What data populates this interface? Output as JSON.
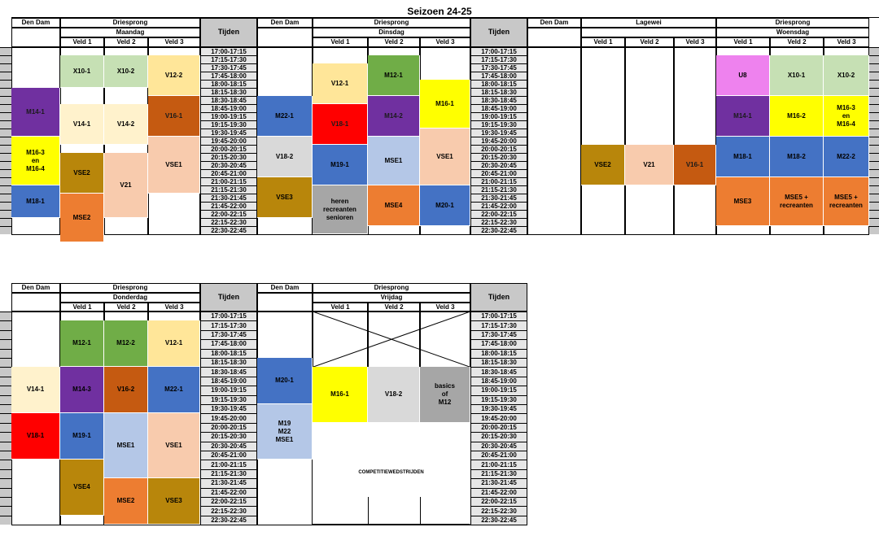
{
  "title": "Seizoen 24-25",
  "times": [
    "17:00-17:15",
    "17:15-17:30",
    "17:30-17:45",
    "17:45-18:00",
    "18:00-18:15",
    "18:15-18:30",
    "18:30-18:45",
    "18:45-19:00",
    "19:00-19:15",
    "19:15-19:30",
    "19:30-19:45",
    "19:45-20:00",
    "20:00-20:15",
    "20:15-20:30",
    "20:30-20:45",
    "20:45-21:00",
    "21:00-21:15",
    "21:15-21:30",
    "21:30-21:45",
    "21:45-22:00",
    "22:00-22:15",
    "22:15-22:30",
    "22:30-22:45"
  ],
  "labels": {
    "den_dam": "Den Dam",
    "driesprong": "Driesprong",
    "lagewei": "Lagewei",
    "tijden": "Tijden",
    "veld1": "Veld 1",
    "veld2": "Veld 2",
    "veld3": "Veld 3",
    "maandag": "Maandag",
    "dinsdag": "Dinsdag",
    "woensdag": "Woensdag",
    "donderdag": "Donderdag",
    "vrijdag": "Vrijdag",
    "competitie": "COMPETITIEWEDSTRIJDEN"
  },
  "colors": {
    "purple": "#7030a0",
    "yellow": "#ffff00",
    "blue": "#4472c4",
    "lightgreen": "#c6e0b4",
    "cream": "#fff2cc",
    "gold": "#b8860b",
    "orange": "#ed7d31",
    "lightorange": "#ffe699",
    "rust": "#c55a11",
    "salmon": "#f8cbad",
    "green": "#70ad47",
    "red": "#ff0000",
    "gray": "#d9d9d9",
    "darkgray": "#a6a6a6",
    "pink": "#ee82ee",
    "lightblue": "#b4c7e7"
  },
  "top_blocks": [
    {
      "label": "M14-1",
      "color": "#7030a0"
    },
    {
      "label": "M16-3\nen\nM16-4",
      "color": "#ffff00"
    },
    {
      "label": "M18-1",
      "color": "#4472c4"
    },
    {
      "label": "X10-1",
      "color": "#c6e0b4"
    },
    {
      "label": "V14-1",
      "color": "#fff2cc"
    },
    {
      "label": "VSE2",
      "color": "#b8860b"
    },
    {
      "label": "MSE2",
      "color": "#ed7d31"
    },
    {
      "label": "X10-2",
      "color": "#c6e0b4"
    },
    {
      "label": "V14-2",
      "color": "#fff2cc"
    },
    {
      "label": "V21",
      "color": "#f8cbad"
    },
    {
      "label": "V12-2",
      "color": "#ffe699"
    },
    {
      "label": "V16-1",
      "color": "#c55a11"
    },
    {
      "label": "VSE1",
      "color": "#f8cbad"
    },
    {
      "label": "M22-1",
      "color": "#4472c4"
    },
    {
      "label": "V18-2",
      "color": "#d9d9d9"
    },
    {
      "label": "VSE3",
      "color": "#b8860b"
    },
    {
      "label": "V12-1",
      "color": "#ffe699"
    },
    {
      "label": "V18-1",
      "color": "#ff0000"
    },
    {
      "label": "M19-1",
      "color": "#4472c4"
    },
    {
      "label": "heren\nrecreanten\nsenioren",
      "color": "#a6a6a6"
    },
    {
      "label": "M12-1",
      "color": "#70ad47"
    },
    {
      "label": "M14-2",
      "color": "#7030a0"
    },
    {
      "label": "MSE1",
      "color": "#b4c7e7"
    },
    {
      "label": "MSE4",
      "color": "#ed7d31"
    },
    {
      "label": "M16-1",
      "color": "#ffff00"
    },
    {
      "label": "VSE1",
      "color": "#f8cbad"
    },
    {
      "label": "M20-1",
      "color": "#4472c4"
    },
    {
      "label": "VSE2",
      "color": "#b8860b"
    },
    {
      "label": "V21",
      "color": "#f8cbad"
    },
    {
      "label": "V16-1",
      "color": "#c55a11"
    },
    {
      "label": "U8",
      "color": "#ee82ee"
    },
    {
      "label": "M14-1",
      "color": "#7030a0"
    },
    {
      "label": "M18-1",
      "color": "#4472c4"
    },
    {
      "label": "MSE3",
      "color": "#ed7d31"
    },
    {
      "label": "X10-1",
      "color": "#c6e0b4"
    },
    {
      "label": "M16-2",
      "color": "#ffff00"
    },
    {
      "label": "M18-2",
      "color": "#4472c4"
    },
    {
      "label": "MSE5 +\nrecreanten",
      "color": "#ed7d31"
    },
    {
      "label": "X10-2",
      "color": "#c6e0b4"
    },
    {
      "label": "M16-3\nen\nM16-4",
      "color": "#ffff00"
    },
    {
      "label": "M22-2",
      "color": "#4472c4"
    },
    {
      "label": "MSE5 +\nrecreanten",
      "color": "#ed7d31"
    }
  ],
  "bottom_blocks": [
    {
      "label": "V14-1",
      "color": "#fff2cc"
    },
    {
      "label": "V18-1",
      "color": "#ff0000"
    },
    {
      "label": "M12-1",
      "color": "#70ad47"
    },
    {
      "label": "M14-3",
      "color": "#7030a0"
    },
    {
      "label": "M19-1",
      "color": "#4472c4"
    },
    {
      "label": "VSE4",
      "color": "#b8860b"
    },
    {
      "label": "M12-2",
      "color": "#70ad47"
    },
    {
      "label": "V16-2",
      "color": "#c55a11"
    },
    {
      "label": "MSE1",
      "color": "#b4c7e7"
    },
    {
      "label": "MSE2",
      "color": "#ed7d31"
    },
    {
      "label": "V12-1",
      "color": "#ffe699"
    },
    {
      "label": "M22-1",
      "color": "#4472c4"
    },
    {
      "label": "VSE1",
      "color": "#f8cbad"
    },
    {
      "label": "VSE3",
      "color": "#b8860b"
    },
    {
      "label": "M20-1",
      "color": "#4472c4"
    },
    {
      "label": "M19\nM22\nMSE1",
      "color": "#b4c7e7"
    },
    {
      "label": "M16-1",
      "color": "#ffff00"
    },
    {
      "label": "V18-2",
      "color": "#d9d9d9"
    },
    {
      "label": "basics\nof\nM12",
      "color": "#a6a6a6"
    }
  ]
}
